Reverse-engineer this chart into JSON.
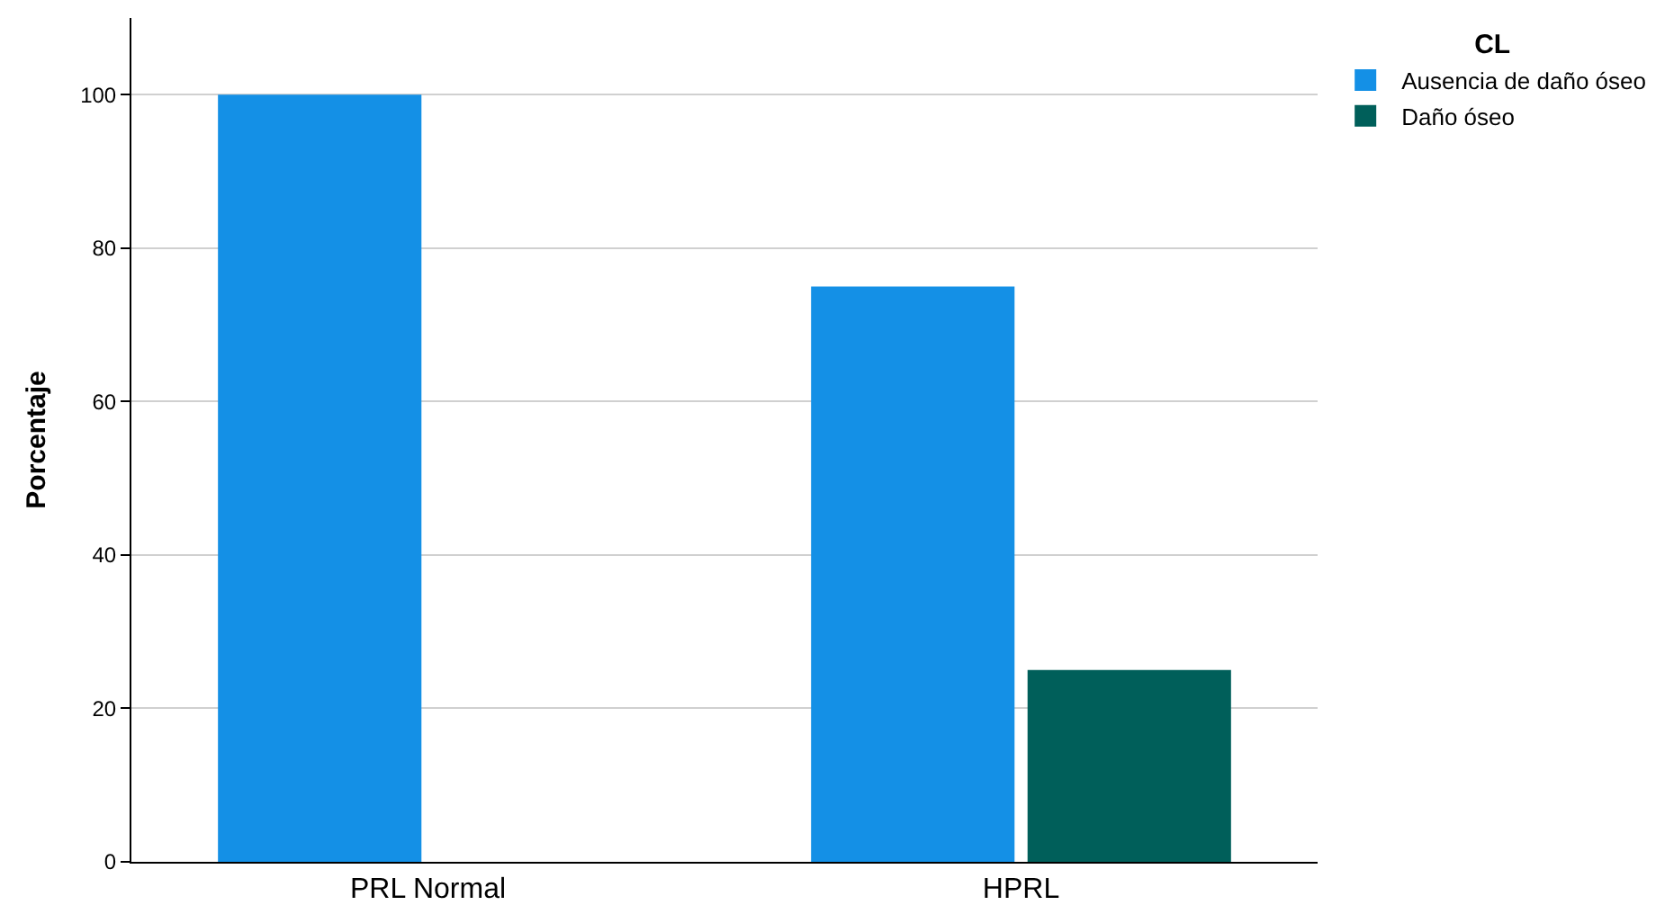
{
  "chart_data": {
    "type": "bar",
    "ylabel": "Porcentaje",
    "legend_title": "CL",
    "categories": [
      "PRL Normal",
      "HPRL"
    ],
    "series": [
      {
        "name": "Ausencia de daño óseo",
        "color": "#1490e6",
        "values": [
          100,
          75
        ]
      },
      {
        "name": "Daño óseo",
        "color": "#005f5a",
        "values": [
          0,
          25
        ]
      }
    ],
    "ylim": [
      0,
      110
    ],
    "yticks": [
      0,
      20,
      40,
      60,
      80,
      100
    ],
    "grid": "y",
    "legend": "top right"
  }
}
